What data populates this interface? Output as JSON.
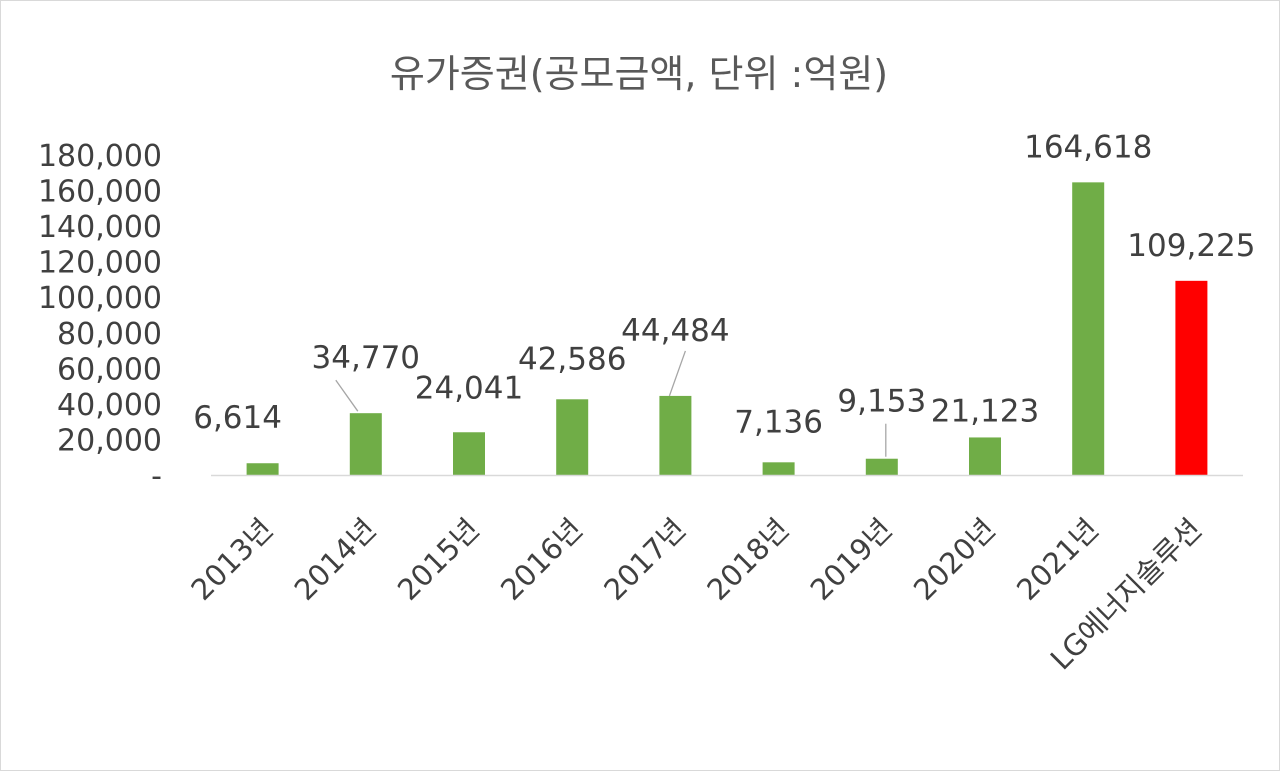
{
  "chart_data": {
    "type": "bar",
    "title": "유가증권(공모금액, 단위 :억원)",
    "categories": [
      "2013년",
      "2014년",
      "2015년",
      "2016년",
      "2017년",
      "2018년",
      "2019년",
      "2020년",
      "2021년",
      "LG에너지솔루션"
    ],
    "values": [
      6614,
      34770,
      24041,
      42586,
      44484,
      7136,
      9153,
      21123,
      164618,
      109225
    ],
    "data_labels": [
      "6,614",
      "34,770",
      "24,041",
      "42,586",
      "44,484",
      "7,136",
      "9,153",
      "21,123",
      "164,618",
      "109,225"
    ],
    "bar_colors": [
      "#70ad47",
      "#70ad47",
      "#70ad47",
      "#70ad47",
      "#70ad47",
      "#70ad47",
      "#70ad47",
      "#70ad47",
      "#70ad47",
      "#ff0000"
    ],
    "ylim": [
      0,
      180000
    ],
    "yticks": [
      0,
      20000,
      40000,
      60000,
      80000,
      100000,
      120000,
      140000,
      160000,
      180000
    ],
    "ytick_labels": [
      "-",
      "20,000",
      "40,000",
      "60,000",
      "80,000",
      "100,000",
      "120,000",
      "140,000",
      "160,000",
      "180,000"
    ],
    "grid": false,
    "legend": "none",
    "xlabel": "",
    "ylabel": ""
  }
}
